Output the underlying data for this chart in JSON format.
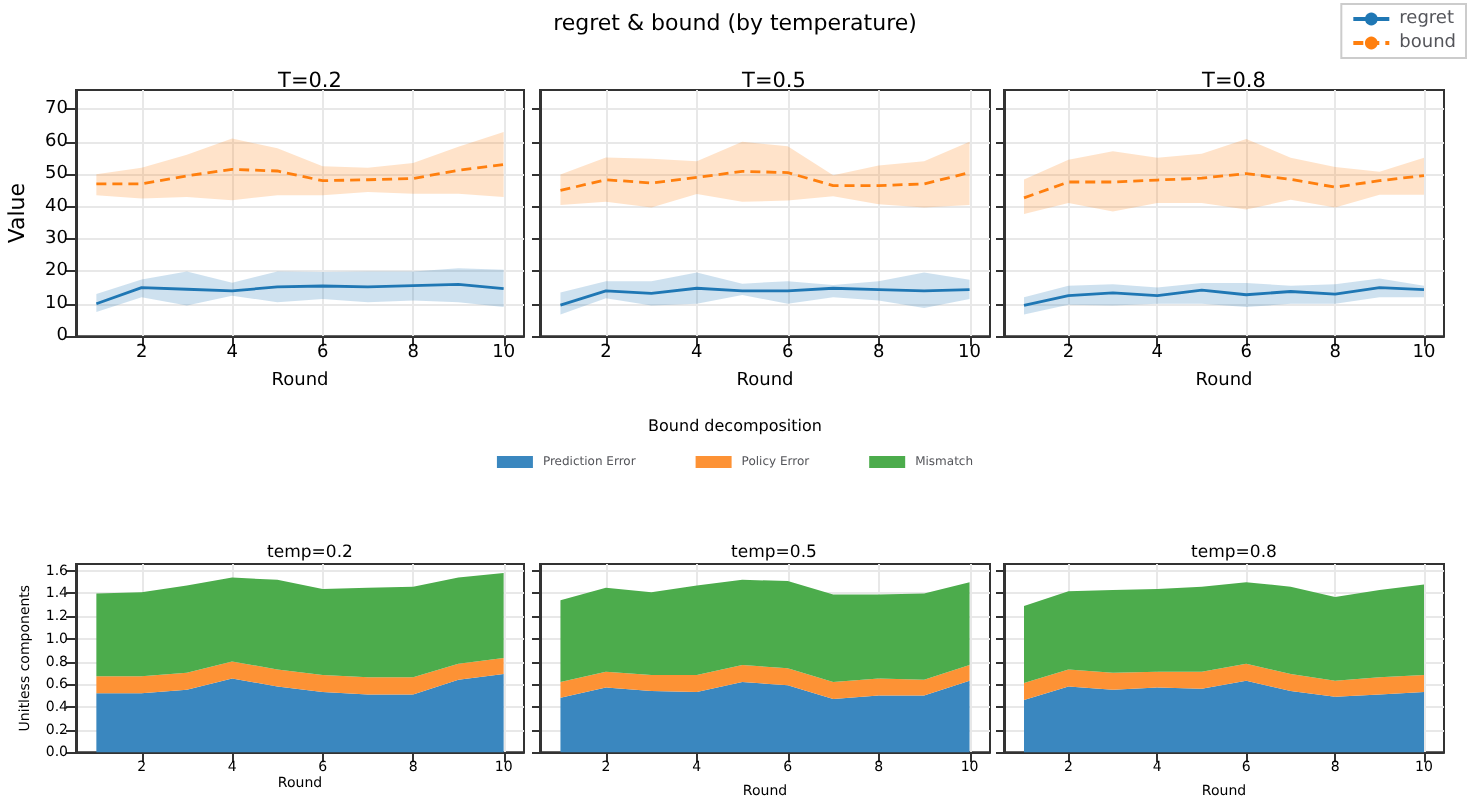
{
  "chart_data": [
    {
      "type": "line",
      "title": "T=0.2",
      "annotations": [
        "regret & bound (by temperature)"
      ],
      "xlabel": "Round",
      "ylabel": "Value",
      "x": [
        1,
        2,
        3,
        4,
        5,
        6,
        7,
        8,
        9,
        10
      ],
      "legend": "top right",
      "grid": true,
      "xlim": [
        0.55,
        10.45
      ],
      "xticks": [
        2,
        4,
        6,
        8,
        10
      ],
      "ylim": [
        0,
        76
      ],
      "yticks": [
        0,
        10,
        20,
        30,
        40,
        50,
        60,
        70
      ],
      "series": [
        {
          "name": "regret",
          "color": "#1f77b4",
          "line_style": "solid",
          "values": [
            10,
            15,
            14.5,
            14,
            15.2,
            15.5,
            15.2,
            15.6,
            16,
            14.7
          ],
          "lower": [
            7.5,
            12,
            9.5,
            12.5,
            10.5,
            11.5,
            10.5,
            11,
            10.5,
            9
          ],
          "upper": [
            13,
            17.5,
            20,
            16.5,
            20,
            19.8,
            20,
            20,
            21,
            20.5
          ]
        },
        {
          "name": "bound",
          "color": "#ff7f0e",
          "line_style": "dashed",
          "values": [
            47,
            47,
            49.5,
            51.5,
            51,
            48,
            48.3,
            48.7,
            51.2,
            53
          ],
          "lower": [
            43.5,
            42.5,
            43,
            42,
            43.5,
            43.5,
            44.5,
            44,
            44,
            43
          ],
          "upper": [
            50,
            52,
            56,
            61,
            58,
            52.5,
            52,
            53.5,
            58.5,
            63
          ]
        }
      ]
    },
    {
      "type": "line",
      "title": "T=0.5",
      "xlabel": "Round",
      "x": [
        1,
        2,
        3,
        4,
        5,
        6,
        7,
        8,
        9,
        10
      ],
      "grid": true,
      "tick_labels": "x",
      "xlim": [
        0.55,
        10.45
      ],
      "xticks": [
        2,
        4,
        6,
        8,
        10
      ],
      "ylim": [
        0,
        76
      ],
      "yticks": [
        0,
        10,
        20,
        30,
        40,
        50,
        60,
        70
      ],
      "series": [
        {
          "color": "#1f77b4",
          "line_style": "solid",
          "values": [
            9.6,
            14,
            13.2,
            14.8,
            14,
            14,
            14.8,
            14.4,
            14,
            14.4
          ],
          "lower": [
            6.7,
            11.7,
            9.5,
            10,
            12.7,
            10,
            12,
            11,
            8.7,
            11.5
          ],
          "upper": [
            13.5,
            17,
            17,
            19.7,
            16.2,
            17,
            15.8,
            17,
            19.7,
            17.4
          ]
        },
        {
          "color": "#ff7f0e",
          "line_style": "dashed",
          "values": [
            45,
            48.3,
            47.3,
            49,
            50.9,
            50.5,
            46.5,
            46.5,
            47,
            50.5
          ],
          "lower": [
            40.5,
            41.5,
            39.7,
            43.9,
            41.5,
            41.9,
            43.2,
            40.7,
            39.7,
            40.5
          ],
          "upper": [
            49.9,
            55.2,
            54.8,
            54,
            60,
            58.6,
            49.7,
            52.7,
            54,
            60
          ]
        }
      ]
    },
    {
      "type": "line",
      "title": "T=0.8",
      "xlabel": "Round",
      "x": [
        1,
        2,
        3,
        4,
        5,
        6,
        7,
        8,
        9,
        10
      ],
      "grid": true,
      "tick_labels": "x",
      "xlim": [
        0.55,
        10.45
      ],
      "xticks": [
        2,
        4,
        6,
        8,
        10
      ],
      "ylim": [
        0,
        76
      ],
      "yticks": [
        0,
        10,
        20,
        30,
        40,
        50,
        60,
        70
      ],
      "series": [
        {
          "color": "#1f77b4",
          "line_style": "solid",
          "values": [
            9.5,
            12.5,
            13.4,
            12.5,
            14.2,
            12.8,
            13.8,
            13,
            15,
            14.4
          ],
          "lower": [
            6.7,
            9.7,
            9.5,
            10,
            10,
            9,
            10,
            10,
            12,
            12
          ],
          "upper": [
            12,
            15.6,
            16,
            15,
            16.4,
            16.4,
            15.6,
            16,
            17.8,
            15.6
          ]
        },
        {
          "color": "#ff7f0e",
          "line_style": "dashed",
          "values": [
            42.7,
            47.6,
            47.6,
            48.2,
            48.8,
            50.2,
            48.4,
            46,
            48,
            49.6
          ],
          "lower": [
            37.7,
            41.1,
            38.5,
            41.1,
            41.1,
            39.1,
            42.1,
            39.7,
            43.7,
            43.7
          ],
          "upper": [
            48.4,
            54.5,
            57.1,
            55.1,
            56.3,
            60.9,
            55.1,
            52.2,
            50.8,
            55.1
          ]
        }
      ]
    },
    {
      "type": "area",
      "stacked": true,
      "title": "temp=0.2",
      "annotations": [
        "Bound decomposition"
      ],
      "xlabel": "Round",
      "ylabel": "Unitless components",
      "x": [
        1,
        2,
        3,
        4,
        5,
        6,
        7,
        8,
        9,
        10
      ],
      "legend": "top",
      "grid": true,
      "xlim": [
        0.55,
        10.45
      ],
      "xticks": [
        2,
        4,
        6,
        8,
        10
      ],
      "ylim": [
        0,
        1.66
      ],
      "yticks": [
        {
          "value": 0,
          "label": "0.0"
        },
        0.2,
        0.4,
        0.6,
        0.8,
        {
          "value": 1,
          "label": "1.0"
        },
        1.2,
        1.4,
        1.6
      ],
      "series": [
        {
          "name": "Prediction Error",
          "color": "#3a87bf",
          "values": [
            0.52,
            0.52,
            0.55,
            0.65,
            0.58,
            0.53,
            0.51,
            0.51,
            0.64,
            0.69
          ]
        },
        {
          "name": "Policy Error",
          "color": "#fd9235",
          "values": [
            0.15,
            0.15,
            0.15,
            0.15,
            0.15,
            0.15,
            0.15,
            0.15,
            0.14,
            0.14
          ]
        },
        {
          "name": "Mismatch",
          "color": "#4cac4c",
          "values": [
            0.73,
            0.74,
            0.77,
            0.74,
            0.79,
            0.76,
            0.79,
            0.8,
            0.76,
            0.75
          ]
        }
      ]
    },
    {
      "type": "area",
      "stacked": true,
      "title": "temp=0.5",
      "xlabel": "Round",
      "x": [
        1,
        2,
        3,
        4,
        5,
        6,
        7,
        8,
        9,
        10
      ],
      "grid": true,
      "tick_labels": "x",
      "xlim": [
        0.55,
        10.45
      ],
      "xticks": [
        2,
        4,
        6,
        8,
        10
      ],
      "ylim": [
        0,
        1.66
      ],
      "yticks": [
        0,
        0.2,
        0.4,
        0.6,
        0.8,
        1,
        1.2,
        1.4,
        1.6
      ],
      "series": [
        {
          "color": "#3a87bf",
          "values": [
            0.48,
            0.57,
            0.54,
            0.53,
            0.62,
            0.59,
            0.47,
            0.5,
            0.5,
            0.63
          ]
        },
        {
          "color": "#fd9235",
          "values": [
            0.14,
            0.14,
            0.14,
            0.15,
            0.15,
            0.15,
            0.15,
            0.15,
            0.14,
            0.14
          ]
        },
        {
          "color": "#4cac4c",
          "values": [
            0.72,
            0.74,
            0.73,
            0.79,
            0.75,
            0.77,
            0.77,
            0.74,
            0.76,
            0.73
          ]
        }
      ]
    },
    {
      "type": "area",
      "stacked": true,
      "title": "temp=0.8",
      "xlabel": "Round",
      "x": [
        1,
        2,
        3,
        4,
        5,
        6,
        7,
        8,
        9,
        10
      ],
      "grid": true,
      "tick_labels": "x",
      "xlim": [
        0.55,
        10.45
      ],
      "xticks": [
        2,
        4,
        6,
        8,
        10
      ],
      "ylim": [
        0,
        1.66
      ],
      "yticks": [
        0,
        0.2,
        0.4,
        0.6,
        0.8,
        1,
        1.2,
        1.4,
        1.6
      ],
      "series": [
        {
          "color": "#3a87bf",
          "values": [
            0.46,
            0.58,
            0.55,
            0.57,
            0.56,
            0.63,
            0.54,
            0.49,
            0.51,
            0.53
          ]
        },
        {
          "color": "#fd9235",
          "values": [
            0.15,
            0.15,
            0.15,
            0.14,
            0.15,
            0.15,
            0.15,
            0.14,
            0.15,
            0.15
          ]
        },
        {
          "color": "#4cac4c",
          "values": [
            0.68,
            0.69,
            0.73,
            0.73,
            0.75,
            0.72,
            0.77,
            0.74,
            0.77,
            0.8
          ]
        }
      ]
    }
  ]
}
